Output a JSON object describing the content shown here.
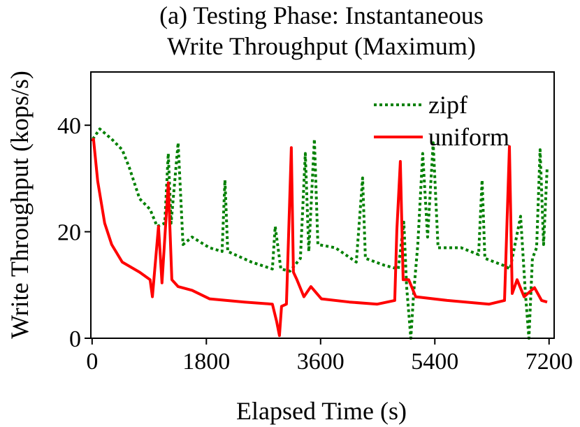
{
  "chart_data": {
    "type": "line",
    "title": [
      "(a) Testing Phase: Instantaneous",
      "Write Throughput (Maximum)"
    ],
    "xlabel": "Elapsed Time (s)",
    "ylabel": "Write Throughput (kops/s)",
    "xlim": [
      -20,
      7280
    ],
    "ylim": [
      0,
      50
    ],
    "xticks": [
      0,
      1800,
      3600,
      5400,
      7200
    ],
    "yticks": [
      0,
      20,
      40
    ],
    "legend": "upper right",
    "series": [
      {
        "name": "zipf",
        "color": "#008000",
        "style": "dotted",
        "x": [
          11,
          121,
          308,
          474,
          584,
          749,
          914,
          1024,
          1145,
          1200,
          1244,
          1355,
          1432,
          1575,
          1850,
          2048,
          2093,
          2137,
          2511,
          2841,
          2885,
          2974,
          3117,
          3282,
          3359,
          3414,
          3502,
          3557,
          3833,
          4163,
          4262,
          4306,
          4604,
          4824,
          4912,
          4956,
          5022,
          5066,
          5132,
          5209,
          5286,
          5374,
          5451,
          5815,
          6090,
          6145,
          6189,
          6476,
          6586,
          6751,
          6828,
          6883,
          6938,
          7004,
          7059,
          7114,
          7170
        ],
        "values": [
          37.4,
          39.3,
          37.4,
          35.4,
          32.1,
          26.2,
          24.2,
          21,
          21.6,
          34.7,
          21.6,
          36.7,
          17.6,
          19,
          17,
          16.3,
          29.7,
          16.3,
          14.3,
          13,
          21,
          13,
          12.6,
          15,
          34.7,
          16.3,
          37.4,
          17.6,
          17,
          14.3,
          30.1,
          15,
          13.7,
          13,
          21.8,
          9.7,
          0,
          8.4,
          17.6,
          34.7,
          19,
          36.7,
          17,
          17,
          15.7,
          29.7,
          15,
          13.7,
          13,
          22.9,
          8.4,
          0,
          15,
          17,
          35.4,
          17.6,
          32.1
        ]
      },
      {
        "name": "uniform",
        "color": "#ff0000",
        "style": "solid",
        "x": [
          0,
          22,
          88,
          198,
          308,
          474,
          749,
          914,
          950,
          1046,
          1101,
          1200,
          1256,
          1355,
          1575,
          1850,
          2400,
          2841,
          2907,
          2952,
          2985,
          3062,
          3139,
          3172,
          3227,
          3337,
          3447,
          3612,
          4053,
          4493,
          4769,
          4802,
          4857,
          4901,
          4989,
          5099,
          5595,
          6256,
          6498,
          6575,
          6619,
          6696,
          6806,
          6971,
          7082,
          7170
        ],
        "values": [
          37,
          37.4,
          29.5,
          21.6,
          17.6,
          14.3,
          12.4,
          11,
          7.8,
          21,
          10.4,
          29.2,
          11,
          9.7,
          9,
          7.4,
          6.8,
          6.4,
          3.2,
          0.5,
          6,
          6.4,
          35.8,
          12.4,
          11,
          7.8,
          9.7,
          7.4,
          6.8,
          6.4,
          7.1,
          20.3,
          33.2,
          11,
          11,
          7.8,
          7.1,
          6.4,
          7.1,
          36,
          8.4,
          11,
          7.8,
          9.5,
          7.1,
          6.8
        ]
      }
    ]
  }
}
